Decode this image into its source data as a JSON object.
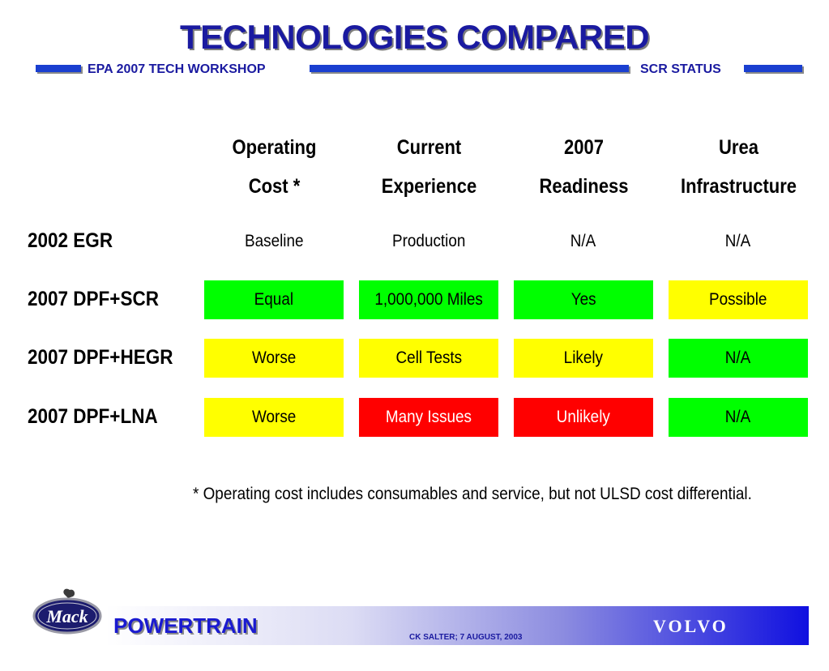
{
  "header": {
    "title": "TECHNOLOGIES COMPARED",
    "left_subtitle": "EPA 2007 TECH WORKSHOP",
    "right_subtitle": "SCR STATUS"
  },
  "table": {
    "columns": [
      [
        "Operating",
        "Cost *"
      ],
      [
        "Current",
        "Experience"
      ],
      [
        "2007",
        "Readiness"
      ],
      [
        "Urea",
        "Infrastructure"
      ]
    ],
    "rows": [
      {
        "label": "2002 EGR",
        "cells": [
          {
            "text": "Baseline",
            "status": "none"
          },
          {
            "text": "Production",
            "status": "none"
          },
          {
            "text": "N/A",
            "status": "none"
          },
          {
            "text": "N/A",
            "status": "none"
          }
        ]
      },
      {
        "label": "2007 DPF+SCR",
        "cells": [
          {
            "text": "Equal",
            "status": "green"
          },
          {
            "text": "1,000,000 Miles",
            "status": "green"
          },
          {
            "text": "Yes",
            "status": "green"
          },
          {
            "text": "Possible",
            "status": "yellow"
          }
        ]
      },
      {
        "label": "2007 DPF+HEGR",
        "cells": [
          {
            "text": "Worse",
            "status": "yellow"
          },
          {
            "text": "Cell Tests",
            "status": "yellow"
          },
          {
            "text": "Likely",
            "status": "yellow"
          },
          {
            "text": "N/A",
            "status": "green"
          }
        ]
      },
      {
        "label": "2007 DPF+LNA",
        "cells": [
          {
            "text": "Worse",
            "status": "yellow"
          },
          {
            "text": "Many Issues",
            "status": "red"
          },
          {
            "text": "Unlikely",
            "status": "red"
          },
          {
            "text": "N/A",
            "status": "green"
          }
        ]
      }
    ]
  },
  "footnote": "* Operating cost includes consumables and service, but not ULSD cost differential.",
  "footer": {
    "logo_text": "Mack",
    "brand": "POWERTRAIN",
    "credit": "CK SALTER; 7 AUGUST, 2003",
    "partner": "VOLVO"
  },
  "colors": {
    "green": "#00ff00",
    "yellow": "#ffff00",
    "red": "#ff0000",
    "title_blue": "#1a1aa0"
  }
}
